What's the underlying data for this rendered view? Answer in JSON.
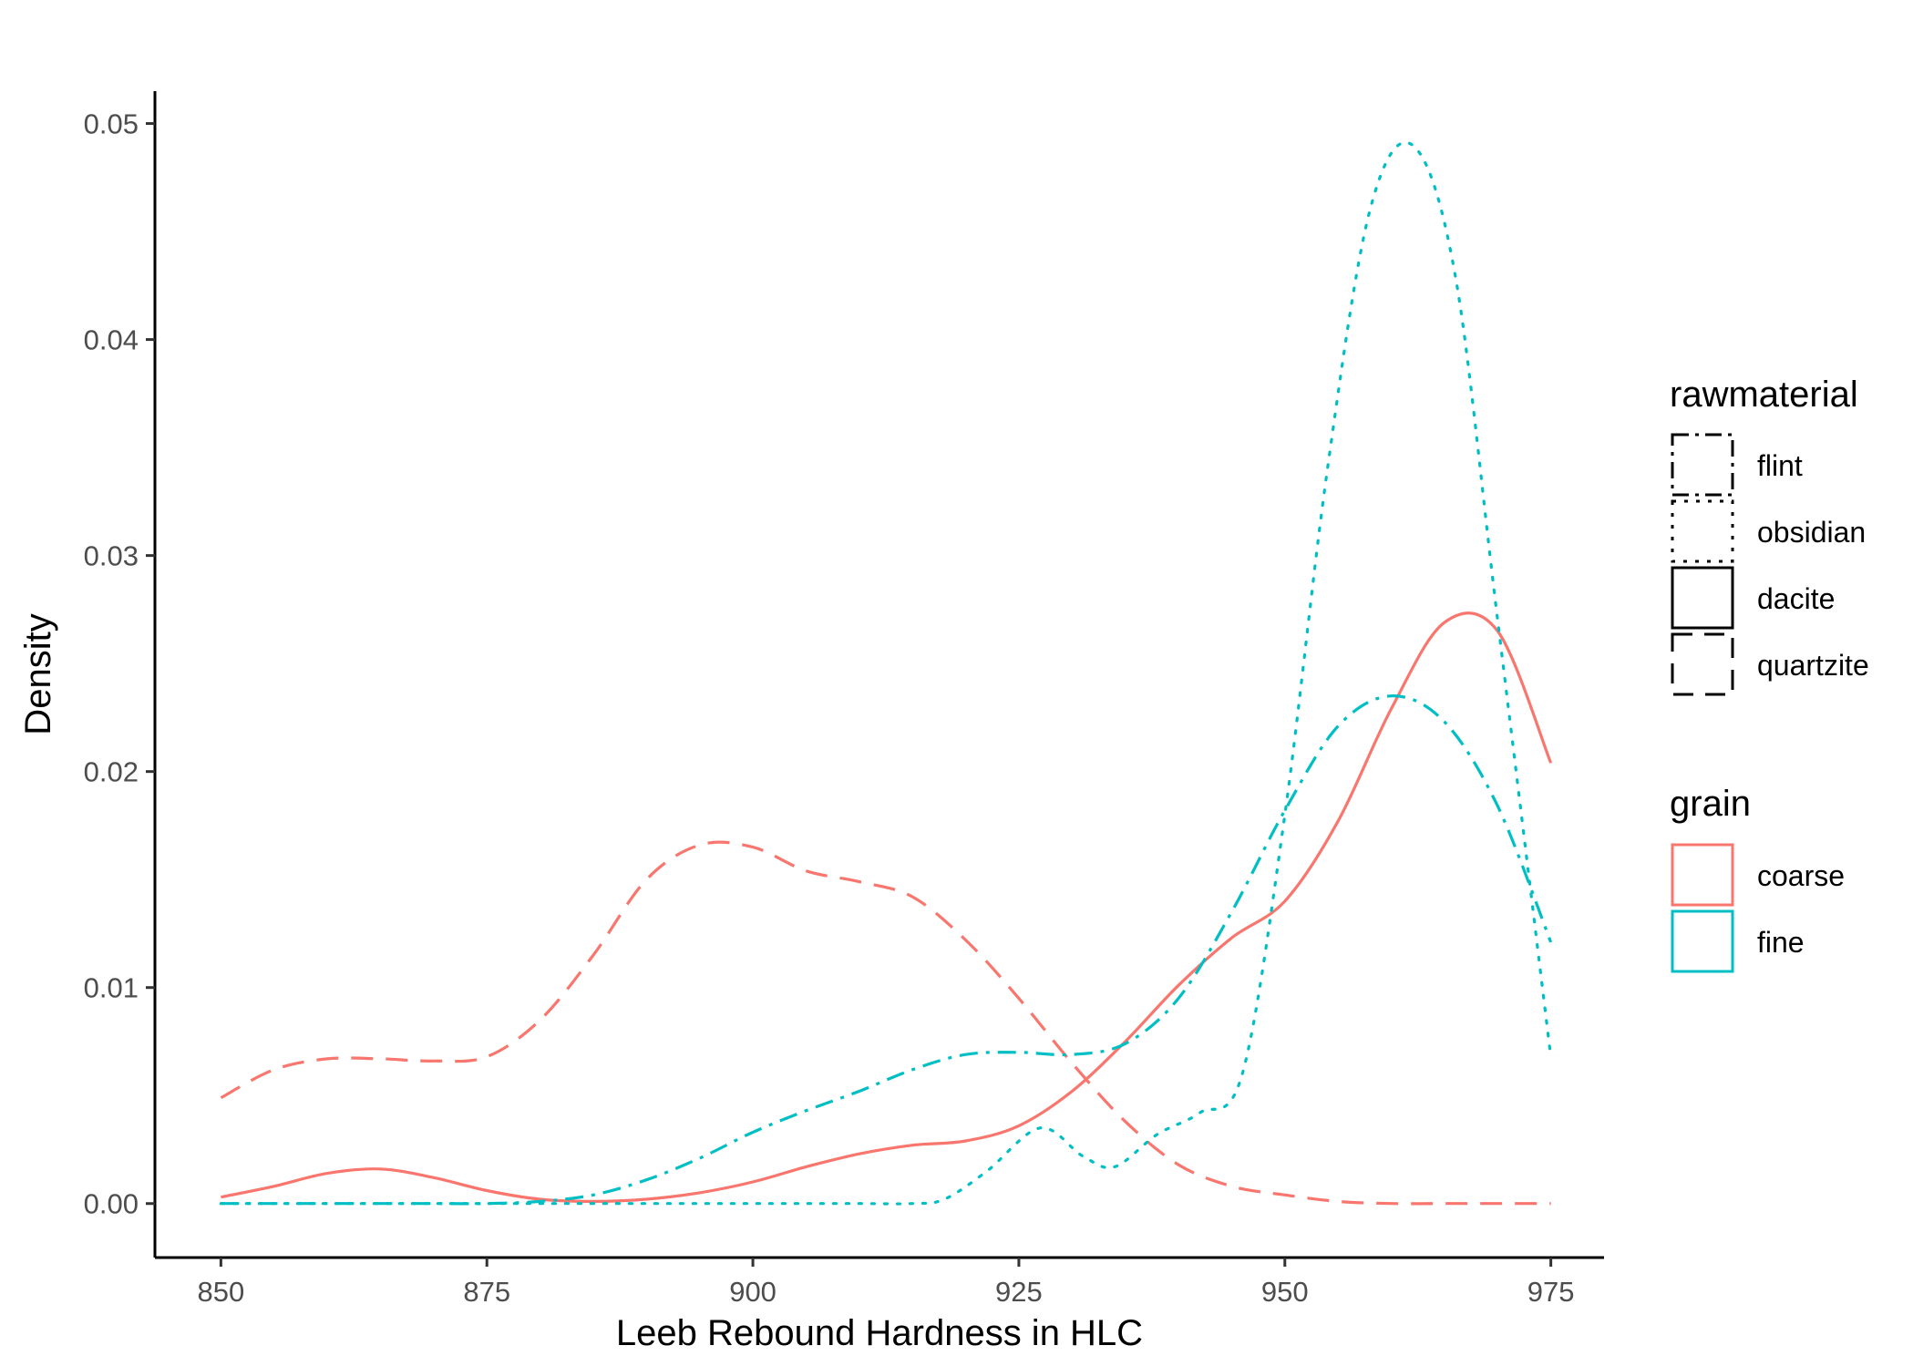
{
  "chart_data": {
    "type": "line",
    "subtype": "density",
    "title": "",
    "xlabel": "Leeb Rebound Hardness in HLC",
    "ylabel": "Density",
    "xlim": [
      843.8,
      980
    ],
    "ylim": [
      -0.0025,
      0.0515
    ],
    "x_ticks": [
      850,
      875,
      900,
      925,
      950,
      975
    ],
    "x_tick_labels": [
      "850",
      "875",
      "900",
      "925",
      "950",
      "975"
    ],
    "y_ticks": [
      0.0,
      0.01,
      0.02,
      0.03,
      0.04,
      0.05
    ],
    "y_tick_labels": [
      "0.00",
      "0.01",
      "0.02",
      "0.03",
      "0.04",
      "0.05"
    ],
    "grid": false,
    "legend_placement": "right",
    "legends": [
      {
        "title": "rawmaterial",
        "entries": [
          {
            "label": "flint",
            "linetype": "dashdot"
          },
          {
            "label": "obsidian",
            "linetype": "dotted"
          },
          {
            "label": "dacite",
            "linetype": "solid"
          },
          {
            "label": "quartzite",
            "linetype": "dashed"
          }
        ]
      },
      {
        "title": "grain",
        "entries": [
          {
            "label": "coarse",
            "color": "#F8766D"
          },
          {
            "label": "fine",
            "color": "#00BFC4"
          }
        ]
      }
    ],
    "series": [
      {
        "rawmaterial": "quartzite",
        "grain": "coarse",
        "color": "#F8766D",
        "linetype": "dashed",
        "x": [
          850,
          855,
          860,
          865,
          870,
          875,
          880,
          885,
          890,
          895,
          900,
          905,
          910,
          915,
          920,
          925,
          930,
          935,
          940,
          945,
          950,
          955,
          960,
          965,
          970,
          975
        ],
        "y": [
          0.0049,
          0.0062,
          0.0067,
          0.0067,
          0.0066,
          0.0068,
          0.0085,
          0.0115,
          0.015,
          0.0166,
          0.0165,
          0.0154,
          0.0149,
          0.0142,
          0.0122,
          0.0095,
          0.0065,
          0.0038,
          0.0018,
          0.0008,
          0.0004,
          0.0001,
          0.0,
          0.0,
          0.0,
          0.0
        ]
      },
      {
        "rawmaterial": "dacite",
        "grain": "coarse",
        "color": "#F8766D",
        "linetype": "solid",
        "x": [
          850,
          855,
          860,
          865,
          870,
          875,
          880,
          885,
          890,
          895,
          900,
          905,
          910,
          915,
          920,
          925,
          930,
          935,
          940,
          945,
          950,
          955,
          960,
          965,
          970,
          975
        ],
        "y": [
          0.0003,
          0.0008,
          0.0014,
          0.0016,
          0.0012,
          0.0006,
          0.0002,
          0.0001,
          0.0002,
          0.0005,
          0.001,
          0.0017,
          0.0023,
          0.0027,
          0.0029,
          0.0036,
          0.0052,
          0.0075,
          0.0101,
          0.0123,
          0.014,
          0.0177,
          0.0229,
          0.0269,
          0.0265,
          0.0204
        ]
      },
      {
        "rawmaterial": "flint",
        "grain": "fine",
        "color": "#00BFC4",
        "linetype": "dashdot",
        "x": [
          850,
          855,
          860,
          865,
          870,
          875,
          880,
          885,
          890,
          895,
          900,
          905,
          910,
          915,
          920,
          925,
          930,
          935,
          940,
          945,
          950,
          955,
          960,
          965,
          970,
          975
        ],
        "y": [
          0.0,
          0.0,
          0.0,
          0.0,
          0.0,
          0.0,
          0.0001,
          0.0004,
          0.0011,
          0.0021,
          0.0033,
          0.0043,
          0.0052,
          0.0062,
          0.0069,
          0.007,
          0.0069,
          0.0074,
          0.0095,
          0.0135,
          0.0182,
          0.0221,
          0.0235,
          0.0223,
          0.0184,
          0.0121
        ]
      },
      {
        "rawmaterial": "obsidian",
        "grain": "fine",
        "color": "#00BFC4",
        "linetype": "dotted",
        "x": [
          850,
          855,
          860,
          865,
          870,
          875,
          880,
          885,
          890,
          895,
          900,
          905,
          910,
          915,
          918,
          922,
          927,
          931,
          934,
          938,
          942,
          946,
          950,
          954,
          958,
          962,
          966,
          970,
          975
        ],
        "y": [
          0.0,
          0.0,
          0.0,
          0.0,
          0.0,
          0.0,
          0.0,
          0.0,
          0.0,
          0.0,
          0.0,
          0.0,
          0.0,
          0.0,
          0.0002,
          0.0015,
          0.0035,
          0.0022,
          0.0017,
          0.0032,
          0.0042,
          0.006,
          0.018,
          0.034,
          0.046,
          0.049,
          0.043,
          0.027,
          0.0068
        ]
      }
    ]
  }
}
